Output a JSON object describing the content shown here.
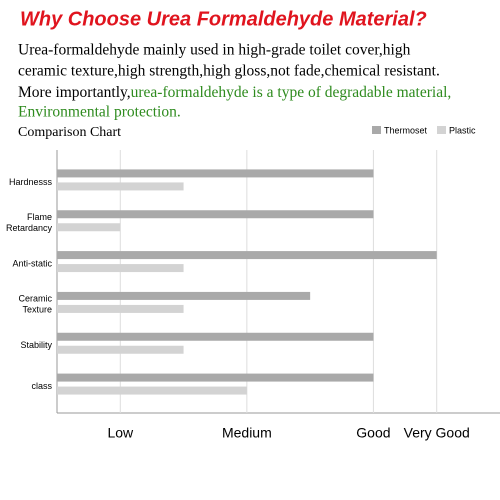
{
  "header": {
    "title": "Why Choose Urea Formaldehyde Material?",
    "line1": "Urea-formaldehyde mainly used in high-grade toilet cover,high",
    "line2": "ceramic texture,high strength,high gloss,not fade,chemical resistant.",
    "line3_start": "More importantly,",
    "line3_highlight": "urea-formaldehyde is a type of degradable material,",
    "line4_highlight": "Environmental protection."
  },
  "chart_data": {
    "type": "hbar",
    "title": "Comparison Chart",
    "categories": [
      "Hardnesss",
      "Flame Retardancy",
      "Anti-static",
      "Ceramic Texture",
      "Stability",
      "class"
    ],
    "series": [
      {
        "name": "Thermoset",
        "color": "#a9a9a9",
        "values": [
          5,
          5,
          6,
          4,
          5,
          5
        ]
      },
      {
        "name": "Plastic",
        "color": "#d3d3d3",
        "values": [
          2,
          1,
          2,
          2,
          2,
          3
        ]
      }
    ],
    "xlim": [
      0,
      7
    ],
    "xticks": [
      {
        "value": 1,
        "label": "Low"
      },
      {
        "value": 3,
        "label": "Medium"
      },
      {
        "value": 5,
        "label": "Good"
      },
      {
        "value": 6,
        "label": "Very Good"
      }
    ],
    "grid": true,
    "legend": "top-right"
  }
}
